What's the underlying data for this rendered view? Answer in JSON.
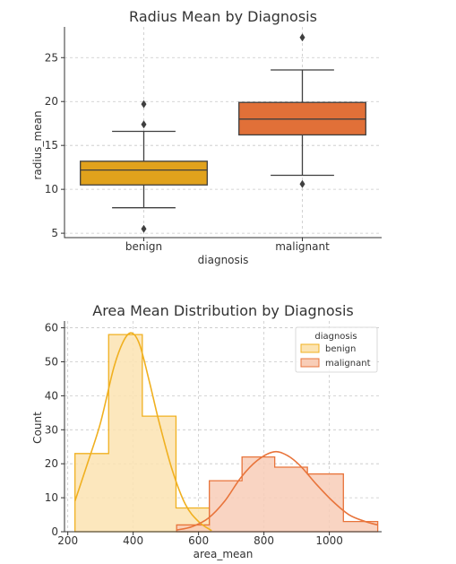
{
  "chart_data": [
    {
      "type": "box",
      "title": "Radius Mean by Diagnosis",
      "xlabel": "diagnosis",
      "ylabel": "radius_mean",
      "ylim": [
        4.5,
        28.5
      ],
      "yticks": [
        5,
        10,
        15,
        20,
        25
      ],
      "grid": true,
      "categories": [
        "benign",
        "malignant"
      ],
      "boxes": [
        {
          "category": "benign",
          "q1": 10.5,
          "median": 12.2,
          "q3": 13.2,
          "whisker_low": 7.9,
          "whisker_high": 16.6,
          "outliers": [
            19.7,
            17.4,
            5.5
          ],
          "color": "#E1A21C"
        },
        {
          "category": "malignant",
          "q1": 16.2,
          "median": 18.0,
          "q3": 19.9,
          "whisker_low": 11.6,
          "whisker_high": 23.6,
          "outliers": [
            27.3,
            10.6
          ],
          "color": "#E17038"
        }
      ]
    },
    {
      "type": "histogram",
      "title": "Area Mean Distribution by Diagnosis",
      "xlabel": "area_mean",
      "ylabel": "Count",
      "xlim": [
        190,
        1160
      ],
      "ylim": [
        0,
        62
      ],
      "xticks": [
        200,
        400,
        600,
        800,
        1000
      ],
      "yticks": [
        0,
        10,
        20,
        30,
        40,
        50,
        60
      ],
      "grid": true,
      "legend": {
        "title": "diagnosis",
        "position": "top-right"
      },
      "series": [
        {
          "name": "benign",
          "fill": "#FCE3B1",
          "stroke": "#F0B020",
          "bins": [
            [
              222,
              325,
              23
            ],
            [
              325,
              428,
              58
            ],
            [
              428,
              531,
              34
            ],
            [
              531,
              634,
              7
            ]
          ],
          "kde": [
            [
              222,
              9
            ],
            [
              260,
              20
            ],
            [
              300,
              32
            ],
            [
              340,
              48
            ],
            [
              370,
              56
            ],
            [
              395,
              58.5
            ],
            [
              420,
              55
            ],
            [
              450,
              44
            ],
            [
              480,
              32
            ],
            [
              520,
              18
            ],
            [
              560,
              8
            ],
            [
              600,
              3
            ],
            [
              640,
              0.3
            ]
          ]
        },
        {
          "name": "malignant",
          "fill": "#F8CDB7",
          "stroke": "#E8743B",
          "bins": [
            [
              533,
              633,
              2
            ],
            [
              633,
              733,
              15
            ],
            [
              733,
              833,
              22
            ],
            [
              833,
              933,
              19
            ],
            [
              933,
              1043,
              17
            ],
            [
              1043,
              1148,
              3
            ]
          ],
          "kde": [
            [
              533,
              0.5
            ],
            [
              580,
              1.5
            ],
            [
              630,
              4
            ],
            [
              680,
              9
            ],
            [
              730,
              16
            ],
            [
              780,
              21
            ],
            [
              830,
              23.5
            ],
            [
              870,
              22.5
            ],
            [
              910,
              19.5
            ],
            [
              960,
              14
            ],
            [
              1010,
              9
            ],
            [
              1060,
              5
            ],
            [
              1110,
              3
            ],
            [
              1148,
              2
            ]
          ]
        }
      ]
    }
  ]
}
